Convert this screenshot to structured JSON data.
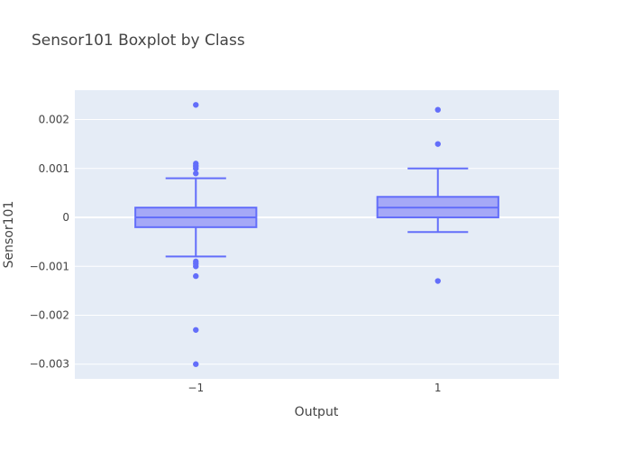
{
  "chart_data": {
    "type": "box",
    "title": "Sensor101 Boxplot by Class",
    "xlabel": "Output",
    "ylabel": "Sensor101",
    "categories": [
      "−1",
      "1"
    ],
    "ylim": [
      -0.0033,
      0.0026
    ],
    "yticks": [
      0.002,
      0.001,
      0,
      -0.001,
      -0.002,
      -0.003
    ],
    "ytick_labels": [
      "0.002",
      "0.001",
      "0",
      "−0.001",
      "−0.002",
      "−0.003"
    ],
    "grid": true,
    "colors": {
      "box_fill": "#a5a8f7",
      "line": "#636efa",
      "plot_bg": "#e5ecf6",
      "grid": "#ffffff"
    },
    "series": [
      {
        "category": "−1",
        "q1": -0.0002,
        "median": 0.0,
        "q3": 0.0002,
        "lower_whisker": -0.0008,
        "upper_whisker": 0.0008,
        "outliers": [
          0.0023,
          0.0011,
          0.00105,
          0.001,
          0.0009,
          -0.0009,
          -0.00095,
          -0.001,
          -0.0012,
          -0.0023,
          -0.003
        ]
      },
      {
        "category": "1",
        "q1": 0.0,
        "median": 0.0002,
        "q3": 0.00042,
        "lower_whisker": -0.0003,
        "upper_whisker": 0.001,
        "outliers": [
          0.0022,
          0.0015,
          -0.0013
        ]
      }
    ]
  }
}
